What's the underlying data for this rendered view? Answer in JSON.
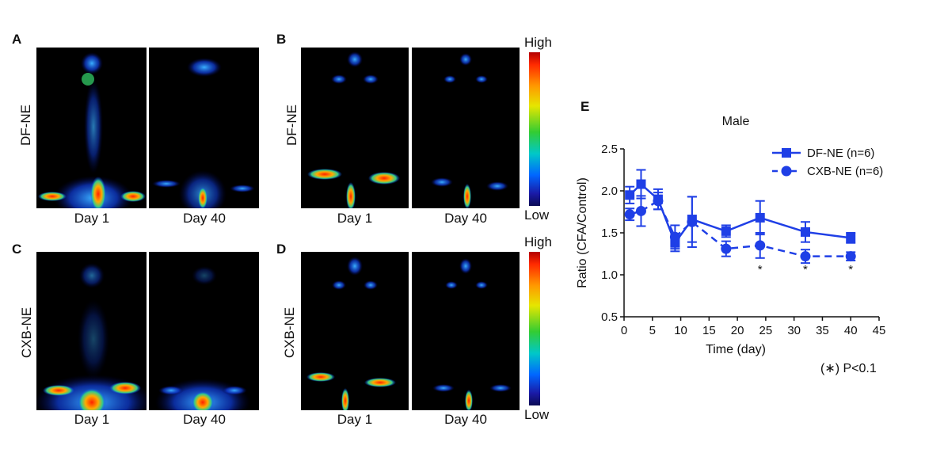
{
  "panels": {
    "A": {
      "letter": "A",
      "row_label": "DF-NE",
      "days": [
        "Day 1",
        "Day 40"
      ]
    },
    "B": {
      "letter": "B",
      "row_label": "DF-NE",
      "days": [
        "Day 1",
        "Day 40"
      ]
    },
    "C": {
      "letter": "C",
      "row_label": "CXB-NE",
      "days": [
        "Day 1",
        "Day 40"
      ]
    },
    "D": {
      "letter": "D",
      "row_label": "CXB-NE",
      "days": [
        "Day 1",
        "Day 40"
      ]
    }
  },
  "colorbar_top": {
    "high": "High",
    "low": "Low"
  },
  "colorbar_bottom": {
    "high": "High",
    "low": "Low"
  },
  "panel_e_letter": "E",
  "significance_note": "(∗) P<0.1",
  "colors": {
    "series": "#1f3fe6",
    "background": "#ffffff",
    "image_bg": "#000000"
  },
  "chart_data": {
    "type": "line",
    "title": "Male",
    "xlabel": "Time (day)",
    "ylabel": "Ratio (CFA/Control)",
    "xlim": [
      0,
      45
    ],
    "ylim": [
      0.5,
      2.5
    ],
    "xticks": [
      0,
      5,
      10,
      15,
      20,
      25,
      30,
      35,
      40,
      45
    ],
    "yticks": [
      0.5,
      1.0,
      1.5,
      2.0,
      2.5
    ],
    "legend_position": "top-right",
    "series": [
      {
        "name": "DF-NE (n=6)",
        "marker": "square",
        "linestyle": "solid",
        "x": [
          1,
          3,
          6,
          9,
          12,
          18,
          24,
          32,
          40
        ],
        "y": [
          1.95,
          2.08,
          1.9,
          1.38,
          1.66,
          1.52,
          1.68,
          1.51,
          1.44
        ],
        "err": [
          0.1,
          0.17,
          0.12,
          0.1,
          0.27,
          0.07,
          0.2,
          0.12,
          0.06
        ]
      },
      {
        "name": "CXB-NE (n=6)",
        "marker": "circle",
        "linestyle": "dashed",
        "x": [
          1,
          3,
          6,
          9,
          12,
          18,
          24,
          32,
          40
        ],
        "y": [
          1.72,
          1.76,
          1.88,
          1.45,
          1.63,
          1.31,
          1.35,
          1.22,
          1.22
        ],
        "err": [
          0.07,
          0.18,
          0.1,
          0.14,
          0.3,
          0.09,
          0.15,
          0.08,
          0.05
        ]
      }
    ],
    "annotations": [
      {
        "x": 24,
        "text": "*"
      },
      {
        "x": 32,
        "text": "*"
      },
      {
        "x": 40,
        "text": "*"
      }
    ]
  }
}
